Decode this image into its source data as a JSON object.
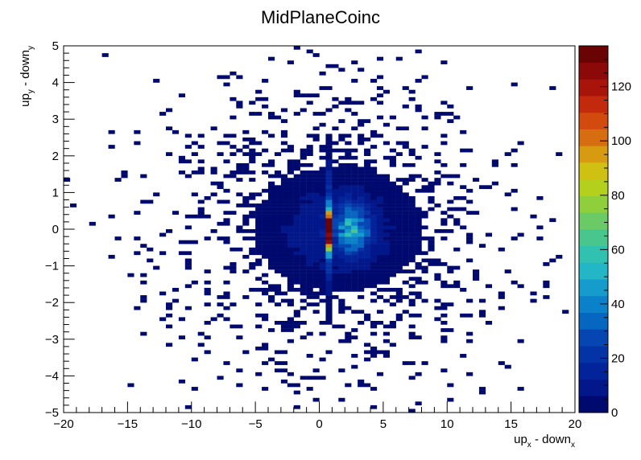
{
  "chart_data": {
    "type": "heatmap",
    "title": "MidPlaneCoinc",
    "xlabel": {
      "base": "up",
      "sub1": "x",
      "mid": " - down",
      "sub2": "x"
    },
    "ylabel": {
      "base": "up",
      "sub1": "y",
      "mid": " - down",
      "sub2": "y"
    },
    "xlim": [
      -20,
      20
    ],
    "ylim": [
      -5,
      5
    ],
    "xticks": [
      -20,
      -15,
      -10,
      -5,
      0,
      5,
      10,
      15,
      20
    ],
    "xtick_labels": [
      "−20",
      "−15",
      "−10",
      "−5",
      "0",
      "5",
      "10",
      "15",
      "20"
    ],
    "yticks": [
      -5,
      -4,
      -3,
      -2,
      -1,
      0,
      1,
      2,
      3,
      4,
      5
    ],
    "ytick_labels": [
      "−5",
      "−4",
      "−3",
      "−2",
      "−1",
      "0",
      "1",
      "2",
      "3",
      "4",
      "5"
    ],
    "bins": {
      "nx": 80,
      "ny": 100
    },
    "z_range": [
      0,
      135
    ],
    "colorbar": {
      "ticks": [
        0,
        20,
        40,
        60,
        80,
        100,
        120
      ],
      "tick_labels": [
        "0",
        "20",
        "40",
        "60",
        "80",
        "100",
        "120"
      ]
    },
    "palette": [
      "#00096d",
      "#01178a",
      "#03239a",
      "#0433a6",
      "#0546b3",
      "#0667c0",
      "#0a81c8",
      "#159ccc",
      "#22b6c6",
      "#30c1b1",
      "#48c68d",
      "#6aca66",
      "#90cf3c",
      "#b4cf1c",
      "#cfc012",
      "#d89a11",
      "#d66d10",
      "#d24a0d",
      "#c32a0d",
      "#a8130a",
      "#8b0908",
      "#6a0303"
    ],
    "peak": {
      "x": 0.8,
      "y": 0.0,
      "value": 133
    },
    "grid": false,
    "stats_box": false
  }
}
